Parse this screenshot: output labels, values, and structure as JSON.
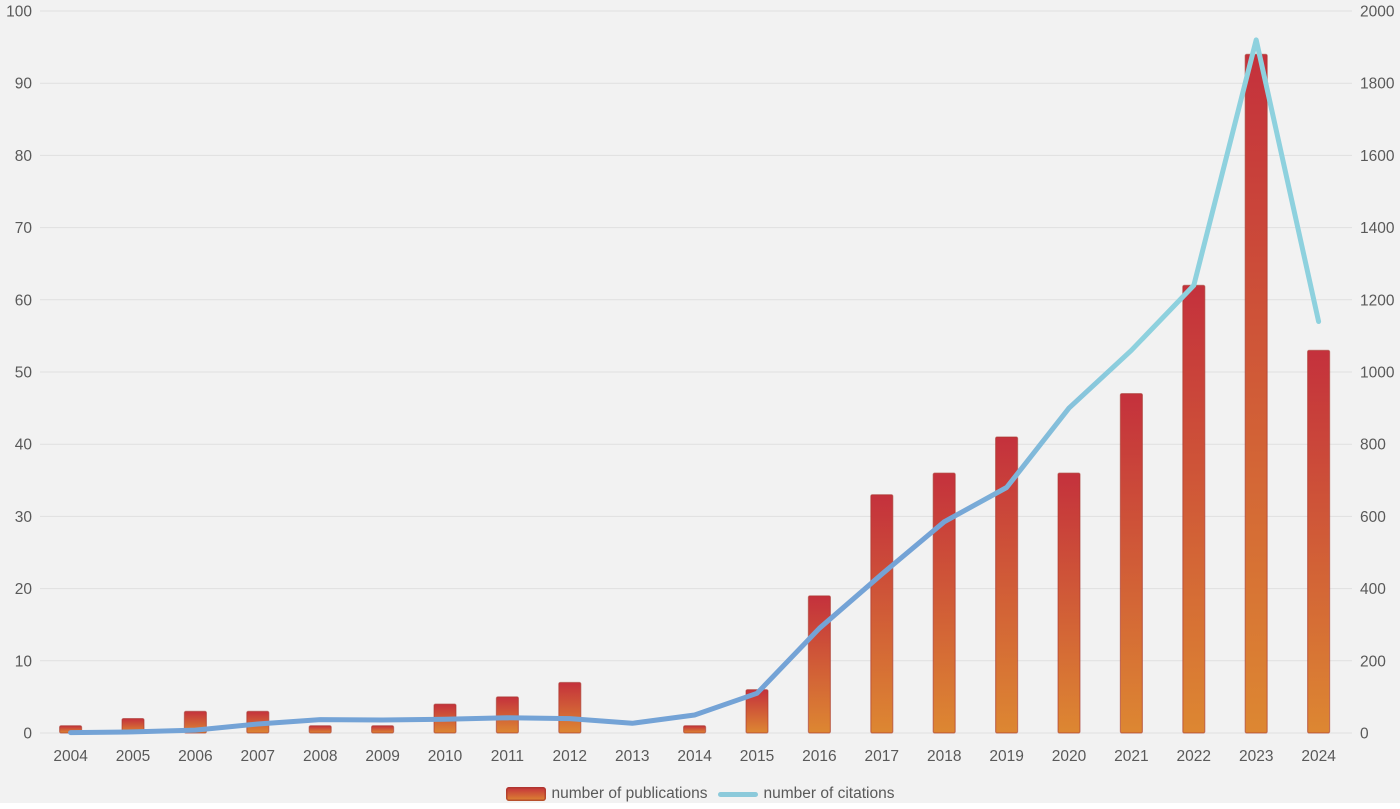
{
  "figure": {
    "background_color": "#f2f2f2",
    "grid_color": "#e0e0e0",
    "tick_text_color": "#595959"
  },
  "legend": {
    "publications_label": "number of publications",
    "citations_label": "number of citations"
  },
  "chart_data": {
    "type": "bar",
    "subtype": "combo bar + line, dual y-axis",
    "title": "",
    "xlabel": "",
    "ylabel_left": "",
    "ylabel_right": "",
    "grid": true,
    "legend_position": "bottom",
    "categories": [
      "2004",
      "2005",
      "2006",
      "2007",
      "2008",
      "2009",
      "2010",
      "2011",
      "2012",
      "2013",
      "2014",
      "2015",
      "2016",
      "2017",
      "2018",
      "2019",
      "2020",
      "2021",
      "2022",
      "2023",
      "2024"
    ],
    "series": [
      {
        "name": "number of publications",
        "type": "bar",
        "axis": "left",
        "values": [
          1,
          2,
          3,
          3,
          1,
          1,
          4,
          5,
          7,
          0,
          1,
          6,
          19,
          33,
          36,
          41,
          36,
          47,
          62,
          94,
          53
        ],
        "bar_color_top": "#c4313c",
        "bar_color_bottom": "#dd8732",
        "bar_border_color": "#a8382f"
      },
      {
        "name": "number of citations",
        "type": "line",
        "axis": "right",
        "values": [
          1,
          3,
          8,
          25,
          37,
          36,
          38,
          42,
          40,
          27,
          50,
          110,
          290,
          440,
          585,
          680,
          900,
          1060,
          1240,
          1920,
          1140
        ],
        "line_color_start": "#74a3d6",
        "line_color_end": "#8ed1de"
      }
    ],
    "left_axis": {
      "min": 0,
      "max": 100,
      "step": 10,
      "ticks": [
        0,
        10,
        20,
        30,
        40,
        50,
        60,
        70,
        80,
        90,
        100
      ]
    },
    "right_axis": {
      "min": 0,
      "max": 2000,
      "step": 200,
      "ticks": [
        0,
        200,
        400,
        600,
        800,
        1000,
        1200,
        1400,
        1600,
        1800,
        2000
      ]
    }
  }
}
